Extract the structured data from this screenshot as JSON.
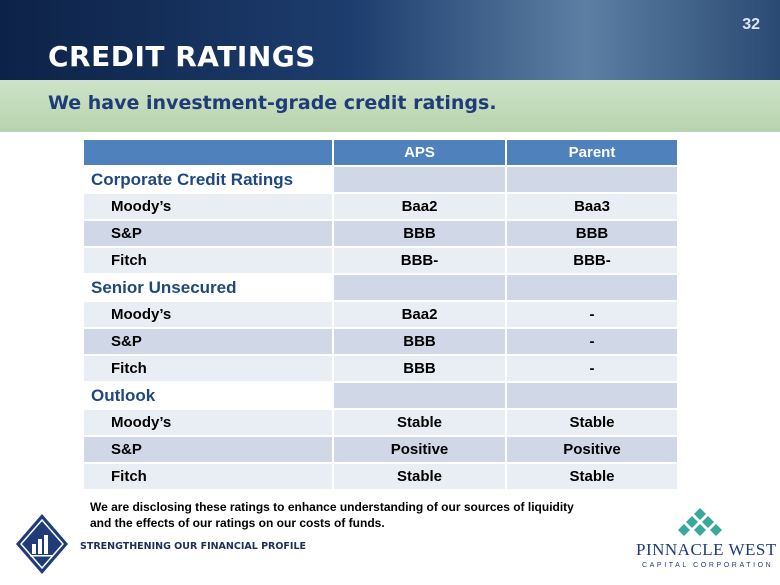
{
  "page_number": "32",
  "header": {
    "title": "CREDIT RATINGS",
    "subtitle": "We have investment-grade credit ratings."
  },
  "table": {
    "columns": [
      "APS",
      "Parent"
    ],
    "sections": [
      {
        "title": "Corporate Credit Ratings",
        "rows": [
          [
            "Moody’s",
            "Baa2",
            "Baa3"
          ],
          [
            "S&P",
            "BBB",
            "BBB"
          ],
          [
            "Fitch",
            "BBB-",
            "BBB-"
          ]
        ]
      },
      {
        "title": "Senior Unsecured",
        "rows": [
          [
            "Moody’s",
            "Baa2",
            "-"
          ],
          [
            "S&P",
            "BBB",
            "-"
          ],
          [
            "Fitch",
            "BBB",
            "-"
          ]
        ]
      },
      {
        "title": "Outlook",
        "rows": [
          [
            "Moody’s",
            "Stable",
            "Stable"
          ],
          [
            "S&P",
            "Positive",
            "Positive"
          ],
          [
            "Fitch",
            "Stable",
            "Stable"
          ]
        ]
      }
    ]
  },
  "footnote": [
    "We are disclosing these ratings to enhance understanding of our sources of liquidity",
    "and the effects of our ratings on our costs of funds."
  ],
  "footer": {
    "tagline": "STRENGTHENING OUR FINANCIAL PROFILE",
    "logo": {
      "name": "PINNACLE WEST",
      "subname": "CAPITAL CORPORATION"
    }
  }
}
